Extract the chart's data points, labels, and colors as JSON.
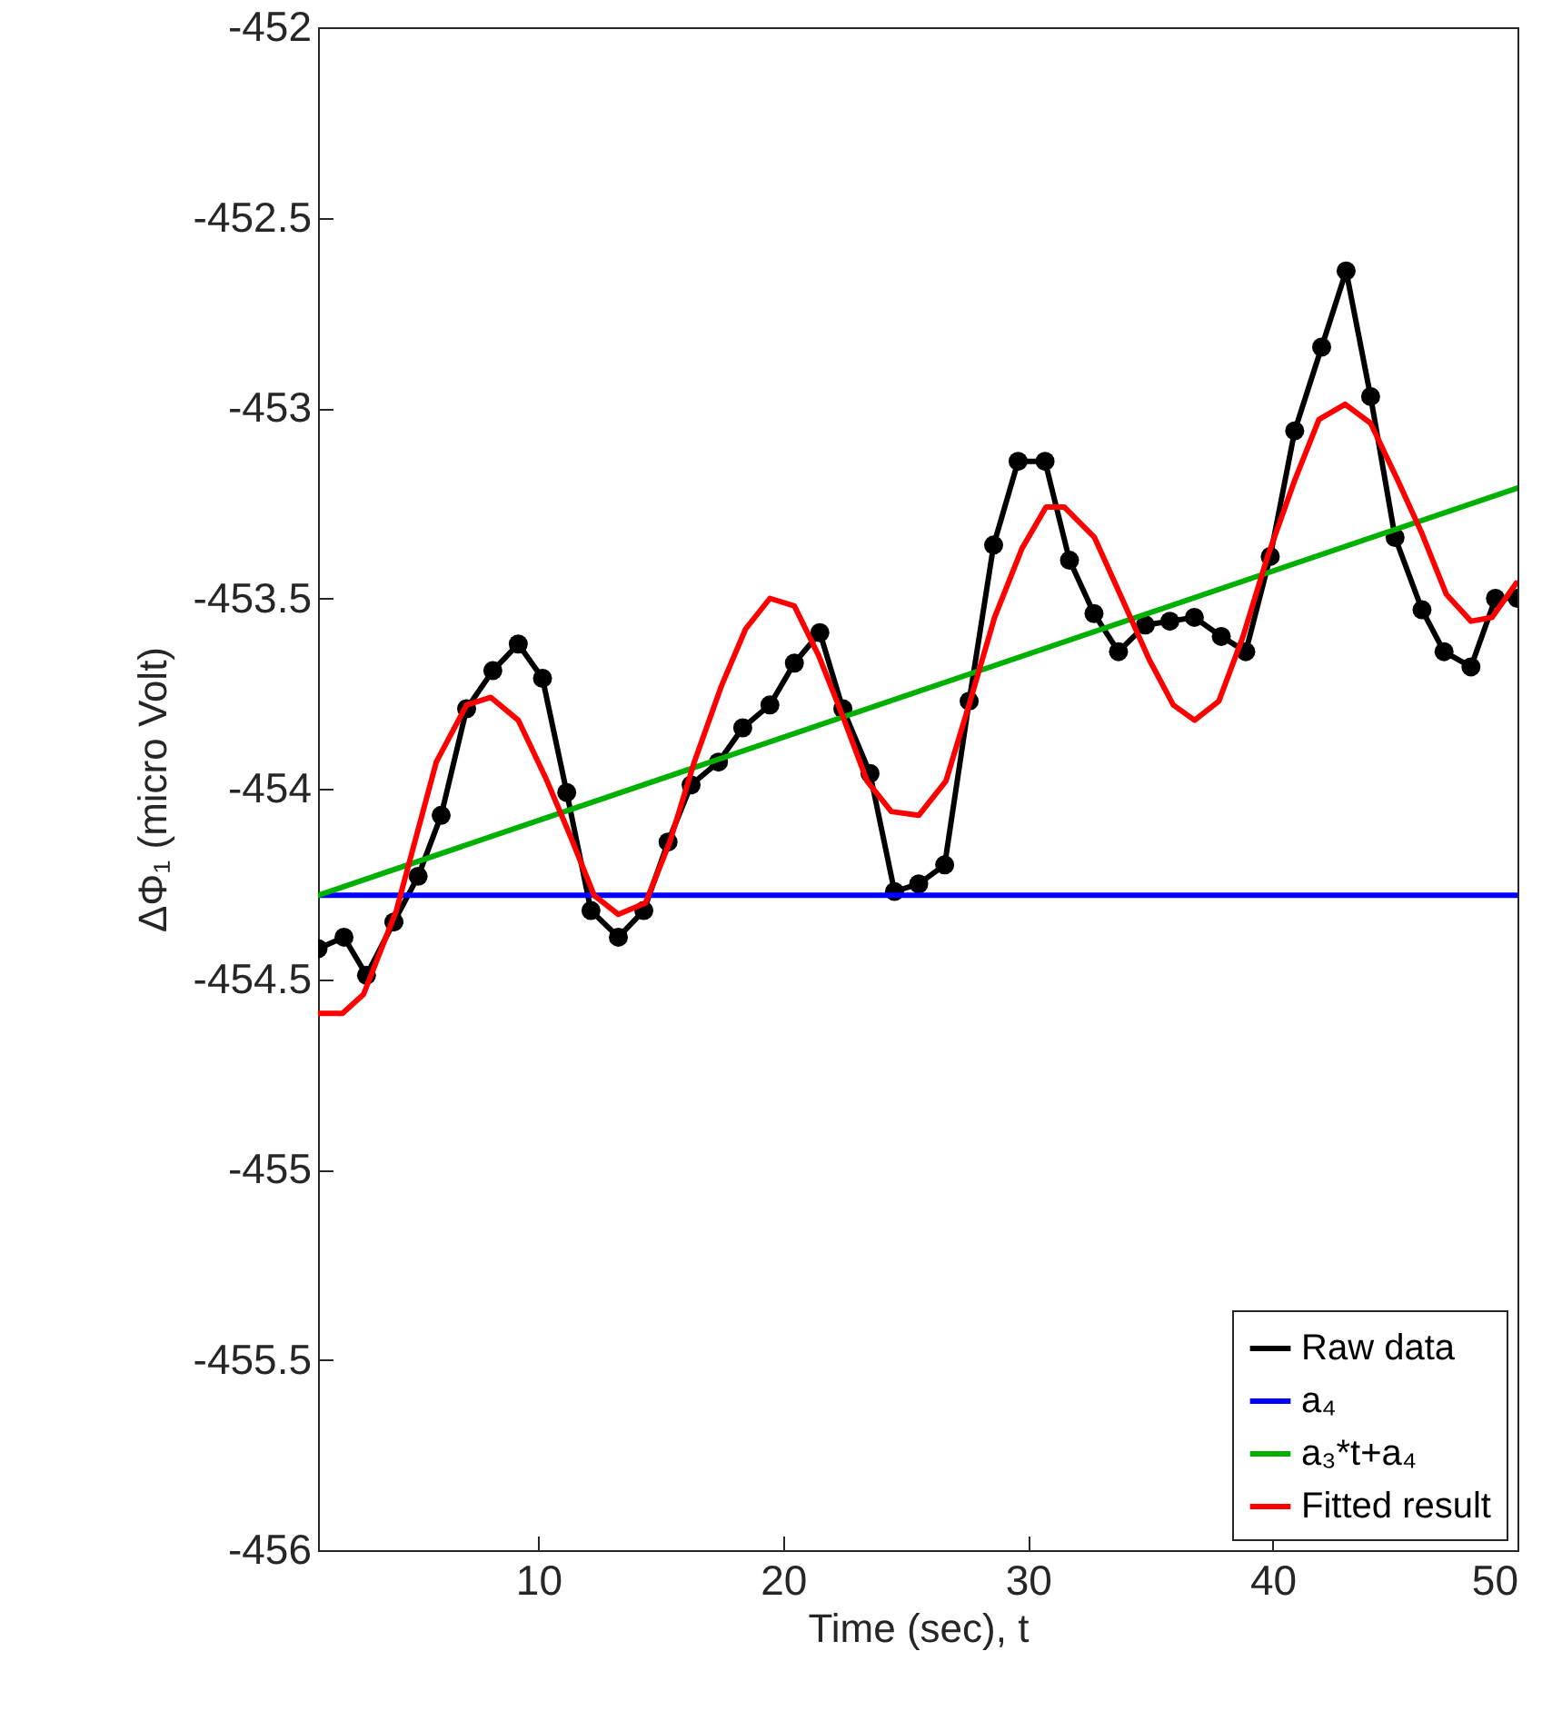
{
  "chart_data": {
    "type": "line",
    "xlabel": "Time (sec), t",
    "ylabel": "ΔΦ₁ (micro Volt)",
    "xlim": [
      1,
      50
    ],
    "xticks": [
      10,
      20,
      30,
      40,
      50
    ],
    "ylim": [
      -456,
      -452
    ],
    "yticks": [
      -456,
      -455.5,
      -455,
      -454.5,
      -454,
      -453.5,
      -453,
      -452.5,
      -452
    ],
    "grid": false,
    "legend": "bottom right",
    "line_style": "solid",
    "series": [
      {
        "name": "Raw data",
        "color": "#000000",
        "marker": "circle",
        "x": [
          1,
          2.06,
          2.98,
          4.1,
          5.09,
          6.03,
          7.07,
          8.14,
          9.18,
          10.17,
          11.16,
          12.15,
          13.27,
          14.31,
          15.3,
          16.24,
          17.36,
          18.35,
          19.46,
          20.46,
          21.5,
          22.44,
          23.55,
          24.55,
          25.54,
          26.6,
          27.6,
          28.6,
          29.6,
          30.7,
          31.7,
          32.7,
          33.7,
          34.8,
          35.8,
          36.8,
          37.9,
          38.9,
          39.9,
          40.9,
          42.0,
          43.0,
          44.0,
          45.0,
          46.1,
          47.0,
          48.1,
          49.1,
          50
        ],
        "values": [
          -454.42,
          -454.39,
          -454.49,
          -454.35,
          -454.23,
          -454.07,
          -453.79,
          -453.69,
          -453.62,
          -453.71,
          -454.01,
          -454.32,
          -454.39,
          -454.32,
          -454.14,
          -453.99,
          -453.93,
          -453.84,
          -453.78,
          -453.67,
          -453.59,
          -453.79,
          -453.96,
          -454.27,
          -454.25,
          -454.2,
          -453.77,
          -453.36,
          -453.14,
          -453.14,
          -453.4,
          -453.54,
          -453.64,
          -453.57,
          -453.56,
          -453.55,
          -453.6,
          -453.64,
          -453.39,
          -453.06,
          -452.84,
          -452.64,
          -452.97,
          -453.34,
          -453.53,
          -453.64,
          -453.68,
          -453.5,
          -453.5
        ]
      },
      {
        "name": "a₄",
        "color": "#0000ff",
        "marker": "none",
        "x": [
          1,
          50
        ],
        "values": [
          -454.28,
          -454.28
        ]
      },
      {
        "name": "a₃*t+a₄",
        "color": "#00b000",
        "marker": "none",
        "x": [
          1,
          50
        ],
        "values": [
          -454.28,
          -453.21
        ]
      },
      {
        "name": "Fitted result",
        "color": "#ff0000",
        "marker": "none",
        "x": [
          1,
          2,
          2.86,
          4.2,
          5.83,
          7.07,
          8.06,
          9.18,
          10.29,
          11.28,
          12.28,
          13.27,
          14.38,
          15.37,
          16.37,
          17.48,
          18.47,
          19.46,
          20.46,
          21.45,
          22.44,
          23.43,
          24.42,
          25.54,
          26.65,
          27.64,
          28.64,
          29.75,
          30.74,
          31.48,
          32.72,
          33.84,
          34.95,
          35.94,
          36.81,
          37.8,
          38.79,
          39.79,
          40.9,
          41.89,
          42.96,
          44.0,
          45.11,
          46.1,
          47.1,
          48.1,
          48.96,
          49.95
        ],
        "values": [
          -454.59,
          -454.59,
          -454.54,
          -454.32,
          -453.93,
          -453.78,
          -453.76,
          -453.82,
          -453.97,
          -454.12,
          -454.28,
          -454.33,
          -454.3,
          -454.14,
          -453.93,
          -453.73,
          -453.58,
          -453.5,
          -453.52,
          -453.65,
          -453.81,
          -453.98,
          -454.06,
          -454.07,
          -453.98,
          -453.77,
          -453.55,
          -453.37,
          -453.26,
          -453.26,
          -453.34,
          -453.5,
          -453.66,
          -453.78,
          -453.82,
          -453.77,
          -453.6,
          -453.39,
          -453.19,
          -453.03,
          -452.99,
          -453.04,
          -453.19,
          -453.33,
          -453.49,
          -453.56,
          -453.55,
          -453.46
        ]
      }
    ]
  }
}
